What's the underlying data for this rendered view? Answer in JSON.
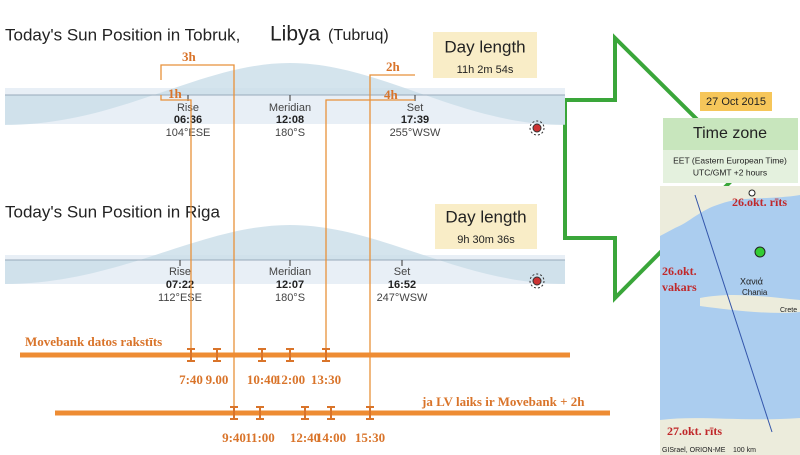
{
  "tobruk": {
    "title": "Today's Sun Position in Tobruk,",
    "country": "Libya",
    "alt_name": "(Tubruq)",
    "day_length": {
      "label": "Day length",
      "value": "11h 2m 54s"
    },
    "rise": {
      "label": "Rise",
      "time": "06:36",
      "direction": "104°ESE"
    },
    "meridian": {
      "label": "Meridian",
      "time": "12:08",
      "direction": "180°S"
    },
    "set": {
      "label": "Set",
      "time": "17:39",
      "direction": "255°WSW"
    }
  },
  "riga": {
    "title": "Today's Sun Position in Riga",
    "day_length": {
      "label": "Day length",
      "value": "9h 30m 36s"
    },
    "rise": {
      "label": "Rise",
      "time": "07:22",
      "direction": "112°ESE"
    },
    "meridian": {
      "label": "Meridian",
      "time": "12:07",
      "direction": "180°S"
    },
    "set": {
      "label": "Set",
      "time": "16:52",
      "direction": "247°WSW"
    }
  },
  "offsets": [
    "3h",
    "1h",
    "2h",
    "4h"
  ],
  "timeline1": {
    "label": "Movebank datos rakstīts",
    "times": [
      "7:40",
      "9.00",
      "10:40",
      "12:00",
      "13:30"
    ]
  },
  "timeline2": {
    "label": "ja LV laiks ir Movebank + 2h",
    "times": [
      "9:40",
      "11:00",
      "12:40",
      "14:00",
      "15:30"
    ]
  },
  "sidebar": {
    "date": "27 Oct 2015",
    "time_zone": "Time zone",
    "zone_name": "EET (Eastern European Time)",
    "zone_offset": "UTC/GMT +2 hours"
  },
  "map": {
    "labels": [
      "26.okt. rīts",
      "26.okt.",
      "vakars",
      "27.okt. rīts"
    ],
    "places": [
      "Χανιά",
      "Chania",
      "Crete"
    ],
    "credit": "GISrael, ORION-ME",
    "scale": "100 km"
  }
}
